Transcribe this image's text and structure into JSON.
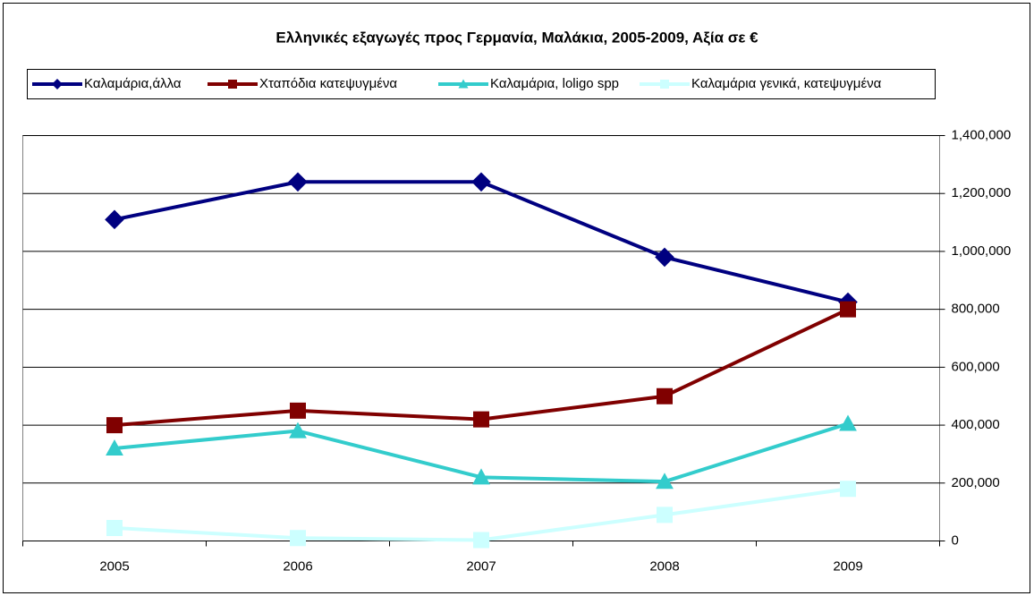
{
  "chart_data": {
    "type": "line",
    "title": "Ελληνικές εξαγωγές προς Γερμανία, Μαλάκια, 2005-2009, Αξία σε €",
    "categories": [
      "2005",
      "2006",
      "2007",
      "2008",
      "2009"
    ],
    "series": [
      {
        "name": "Καλαμάρια,άλλα",
        "color": "#000080",
        "marker": "diamond",
        "values": [
          1110000,
          1240000,
          1240000,
          980000,
          825000
        ]
      },
      {
        "name": "Χταπόδια κατεψυγμένα",
        "color": "#800000",
        "marker": "square",
        "values": [
          400000,
          450000,
          420000,
          500000,
          800000
        ]
      },
      {
        "name": "Καλαμάρια, loligo spp",
        "color": "#33cccc",
        "marker": "triangle",
        "values": [
          320000,
          380000,
          220000,
          205000,
          405000
        ]
      },
      {
        "name": "Καλαμάρια γενικά, κατεψυγμένα",
        "color": "#ccffff",
        "marker": "square",
        "values": [
          45000,
          10000,
          3000,
          90000,
          180000
        ]
      }
    ],
    "ylim": [
      0,
      1400000
    ],
    "yticks": [
      0,
      {
        "value": 200000,
        "label": "200,000"
      },
      {
        "value": 400000,
        "label": "400,000"
      },
      {
        "value": 600000,
        "label": "600,000"
      },
      {
        "value": 800000,
        "label": "800,000"
      },
      {
        "value": 1000000,
        "label": "1,000,000"
      },
      {
        "value": 1200000,
        "label": "1,200,000"
      },
      {
        "value": 1400000,
        "label": "1,400,000"
      }
    ],
    "grid": true,
    "legend": "top"
  }
}
